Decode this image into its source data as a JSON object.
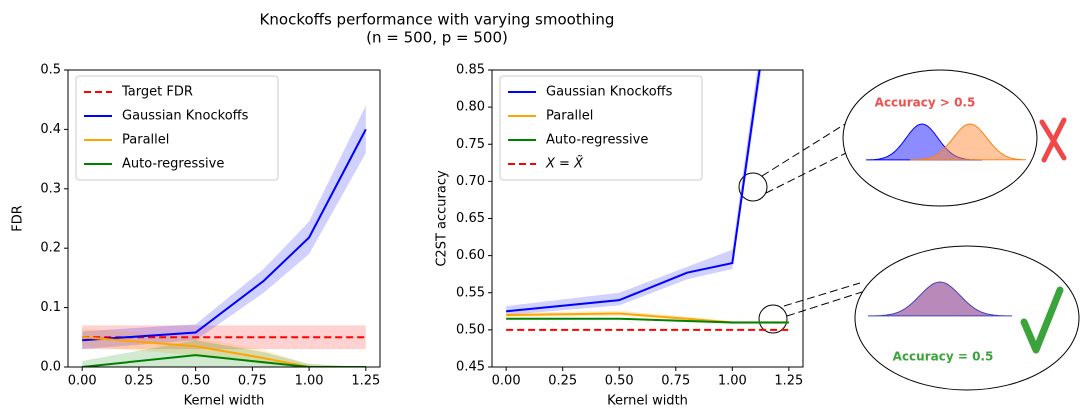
{
  "title": "Knockoffs performance with varying smoothing",
  "subtitle": "(n = 500, p = 500)",
  "annotations": [
    "Accuracy > 0.5",
    "Accuracy = 0.5"
  ],
  "chart_data": [
    {
      "type": "line",
      "xlabel": "Kernel width",
      "ylabel": "FDR",
      "x": [
        0,
        0.5,
        0.8,
        1.0,
        1.25
      ],
      "xlim": [
        -0.0625,
        1.3125
      ],
      "xticks": [
        {
          "value": 0,
          "label": "0.00"
        },
        {
          "value": 0.25,
          "label": "0.25"
        },
        {
          "value": 0.5,
          "label": "0.50"
        },
        {
          "value": 0.75,
          "label": "0.75"
        },
        {
          "value": 1.0,
          "label": "1.00"
        },
        {
          "value": 1.25,
          "label": "1.25"
        }
      ],
      "ylim": [
        0,
        0.5
      ],
      "yticks": [
        {
          "value": 0,
          "label": "0.0"
        },
        0.1,
        0.2,
        0.3,
        0.4,
        0.5
      ],
      "legend": "upper left",
      "series": [
        {
          "name": "Target FDR",
          "color": "#ff0000",
          "dashed": true,
          "values": [
            0.05,
            0.05,
            0.05,
            0.05,
            0.05
          ],
          "lower": [
            0.03,
            0.03,
            0.03,
            0.03,
            0.03
          ],
          "upper": [
            0.07,
            0.07,
            0.07,
            0.07,
            0.07
          ]
        },
        {
          "name": "Gaussian Knockoffs",
          "color": "#0000ff",
          "values": [
            0.045,
            0.058,
            0.145,
            0.218,
            0.4
          ],
          "lower": [
            0.03,
            0.045,
            0.125,
            0.19,
            0.36
          ],
          "upper": [
            0.06,
            0.072,
            0.165,
            0.245,
            0.44
          ]
        },
        {
          "name": "Parallel",
          "color": "#ffa500",
          "values": [
            0.05,
            0.035,
            0.015,
            0,
            0
          ],
          "lower": [
            0.035,
            0.02,
            0.005,
            0,
            0
          ],
          "upper": [
            0.065,
            0.05,
            0.028,
            0.005,
            0
          ]
        },
        {
          "name": "Auto-regressive",
          "color": "#008000",
          "values": [
            0,
            0.02,
            0.008,
            0,
            0
          ],
          "lower": [
            0,
            0,
            0,
            0,
            0
          ],
          "upper": [
            0.01,
            0.045,
            0.025,
            0.005,
            0
          ]
        }
      ]
    },
    {
      "type": "line",
      "xlabel": "Kernel width",
      "ylabel": "C2ST accuracy",
      "x": [
        0,
        0.5,
        0.8,
        1.0,
        1.25
      ],
      "xlim": [
        -0.0625,
        1.3125
      ],
      "xticks": [
        {
          "value": 0,
          "label": "0.00"
        },
        {
          "value": 0.25,
          "label": "0.25"
        },
        {
          "value": 0.5,
          "label": "0.50"
        },
        {
          "value": 0.75,
          "label": "0.75"
        },
        {
          "value": 1.0,
          "label": "1.00"
        },
        {
          "value": 1.25,
          "label": "1.25"
        }
      ],
      "ylim": [
        0.45,
        0.85
      ],
      "yticks": [
        0.45,
        {
          "value": 0.5,
          "label": "0.50"
        },
        0.55,
        {
          "value": 0.6,
          "label": "0.60"
        },
        0.65,
        {
          "value": 0.7,
          "label": "0.70"
        },
        0.75,
        {
          "value": 0.8,
          "label": "0.80"
        },
        0.85
      ],
      "legend": "upper left",
      "series": [
        {
          "name": "Gaussian Knockoffs",
          "color": "#0000ff",
          "values": [
            0.525,
            0.54,
            0.577,
            0.59,
            1.13
          ],
          "lower": [
            0.52,
            0.533,
            0.568,
            0.582,
            1.1
          ],
          "upper": [
            0.532,
            0.55,
            0.585,
            0.608,
            1.16
          ]
        },
        {
          "name": "Parallel",
          "color": "#ffa500",
          "values": [
            0.52,
            0.522,
            0.515,
            0.51,
            0.51
          ],
          "lower": [
            0.517,
            0.519,
            0.512,
            0.508,
            0.508
          ],
          "upper": [
            0.523,
            0.526,
            0.518,
            0.512,
            0.512
          ]
        },
        {
          "name": "Auto-regressive",
          "color": "#008000",
          "values": [
            0.515,
            0.515,
            0.512,
            0.51,
            0.51
          ]
        },
        {
          "name": "X = X̃",
          "color": "#ff0000",
          "dashed": true,
          "italic": true,
          "values": [
            0.5,
            0.5,
            0.5,
            0.5,
            0.5
          ]
        }
      ]
    }
  ]
}
